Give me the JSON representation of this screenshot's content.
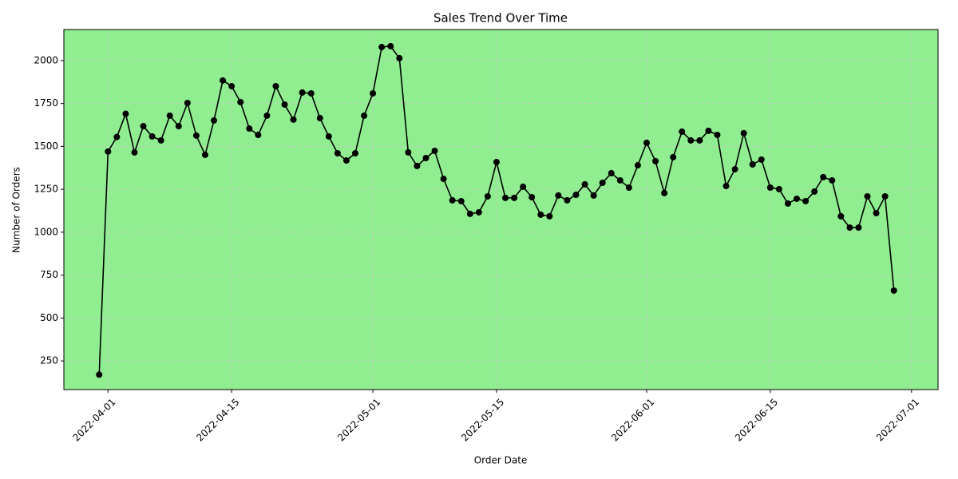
{
  "chart_data": {
    "type": "line",
    "title": "Sales Trend Over Time",
    "x_label": "Order Date",
    "y_label": "Number of Orders",
    "x": [
      "2022-03-31",
      "2022-04-01",
      "2022-04-02",
      "2022-04-03",
      "2022-04-04",
      "2022-04-05",
      "2022-04-06",
      "2022-04-07",
      "2022-04-08",
      "2022-04-09",
      "2022-04-10",
      "2022-04-11",
      "2022-04-12",
      "2022-04-13",
      "2022-04-14",
      "2022-04-15",
      "2022-04-16",
      "2022-04-17",
      "2022-04-18",
      "2022-04-19",
      "2022-04-20",
      "2022-04-21",
      "2022-04-22",
      "2022-04-23",
      "2022-04-24",
      "2022-04-25",
      "2022-04-26",
      "2022-04-27",
      "2022-04-28",
      "2022-04-29",
      "2022-04-30",
      "2022-05-01",
      "2022-05-02",
      "2022-05-03",
      "2022-05-04",
      "2022-05-05",
      "2022-05-06",
      "2022-05-07",
      "2022-05-08",
      "2022-05-09",
      "2022-05-10",
      "2022-05-11",
      "2022-05-12",
      "2022-05-13",
      "2022-05-14",
      "2022-05-15",
      "2022-05-16",
      "2022-05-17",
      "2022-05-18",
      "2022-05-19",
      "2022-05-20",
      "2022-05-21",
      "2022-05-22",
      "2022-05-23",
      "2022-05-24",
      "2022-05-25",
      "2022-05-26",
      "2022-05-27",
      "2022-05-28",
      "2022-05-29",
      "2022-05-30",
      "2022-05-31",
      "2022-06-01",
      "2022-06-02",
      "2022-06-03",
      "2022-06-04",
      "2022-06-05",
      "2022-06-06",
      "2022-06-07",
      "2022-06-08",
      "2022-06-09",
      "2022-06-10",
      "2022-06-11",
      "2022-06-12",
      "2022-06-13",
      "2022-06-14",
      "2022-06-15",
      "2022-06-16",
      "2022-06-17",
      "2022-06-18",
      "2022-06-19",
      "2022-06-20",
      "2022-06-21",
      "2022-06-22",
      "2022-06-23",
      "2022-06-24",
      "2022-06-25",
      "2022-06-26",
      "2022-06-27",
      "2022-06-28",
      "2022-06-29"
    ],
    "values": [
      170,
      1470,
      1555,
      1690,
      1465,
      1618,
      1558,
      1535,
      1679,
      1618,
      1753,
      1563,
      1451,
      1651,
      1884,
      1851,
      1758,
      1604,
      1567,
      1679,
      1851,
      1744,
      1656,
      1814,
      1809,
      1665,
      1558,
      1460,
      1418,
      1460,
      1679,
      1809,
      2079,
      2084,
      2014,
      1465,
      1386,
      1432,
      1474,
      1311,
      1186,
      1181,
      1107,
      1116,
      1209,
      1409,
      1200,
      1200,
      1265,
      1204,
      1102,
      1093,
      1214,
      1186,
      1218,
      1279,
      1214,
      1288,
      1344,
      1302,
      1260,
      1390,
      1521,
      1414,
      1228,
      1437,
      1586,
      1535,
      1535,
      1591,
      1567,
      1269,
      1367,
      1577,
      1395,
      1423,
      1260,
      1251,
      1167,
      1195,
      1181,
      1237,
      1321,
      1302,
      1093,
      1027,
      1027,
      1209,
      1111,
      1209,
      660
    ],
    "color": "#000000",
    "marker": "o",
    "plot_background": "#90ee90",
    "grid": true,
    "xlim": [
      "2022-03-27",
      "2022-07-04"
    ],
    "xticks": [
      "2022-04-01",
      "2022-04-15",
      "2022-05-01",
      "2022-05-15",
      "2022-06-01",
      "2022-06-15",
      "2022-07-01"
    ],
    "ylim": [
      83,
      2181
    ],
    "yticks": [
      250,
      500,
      750,
      1000,
      1250,
      1500,
      1750,
      2000
    ]
  }
}
